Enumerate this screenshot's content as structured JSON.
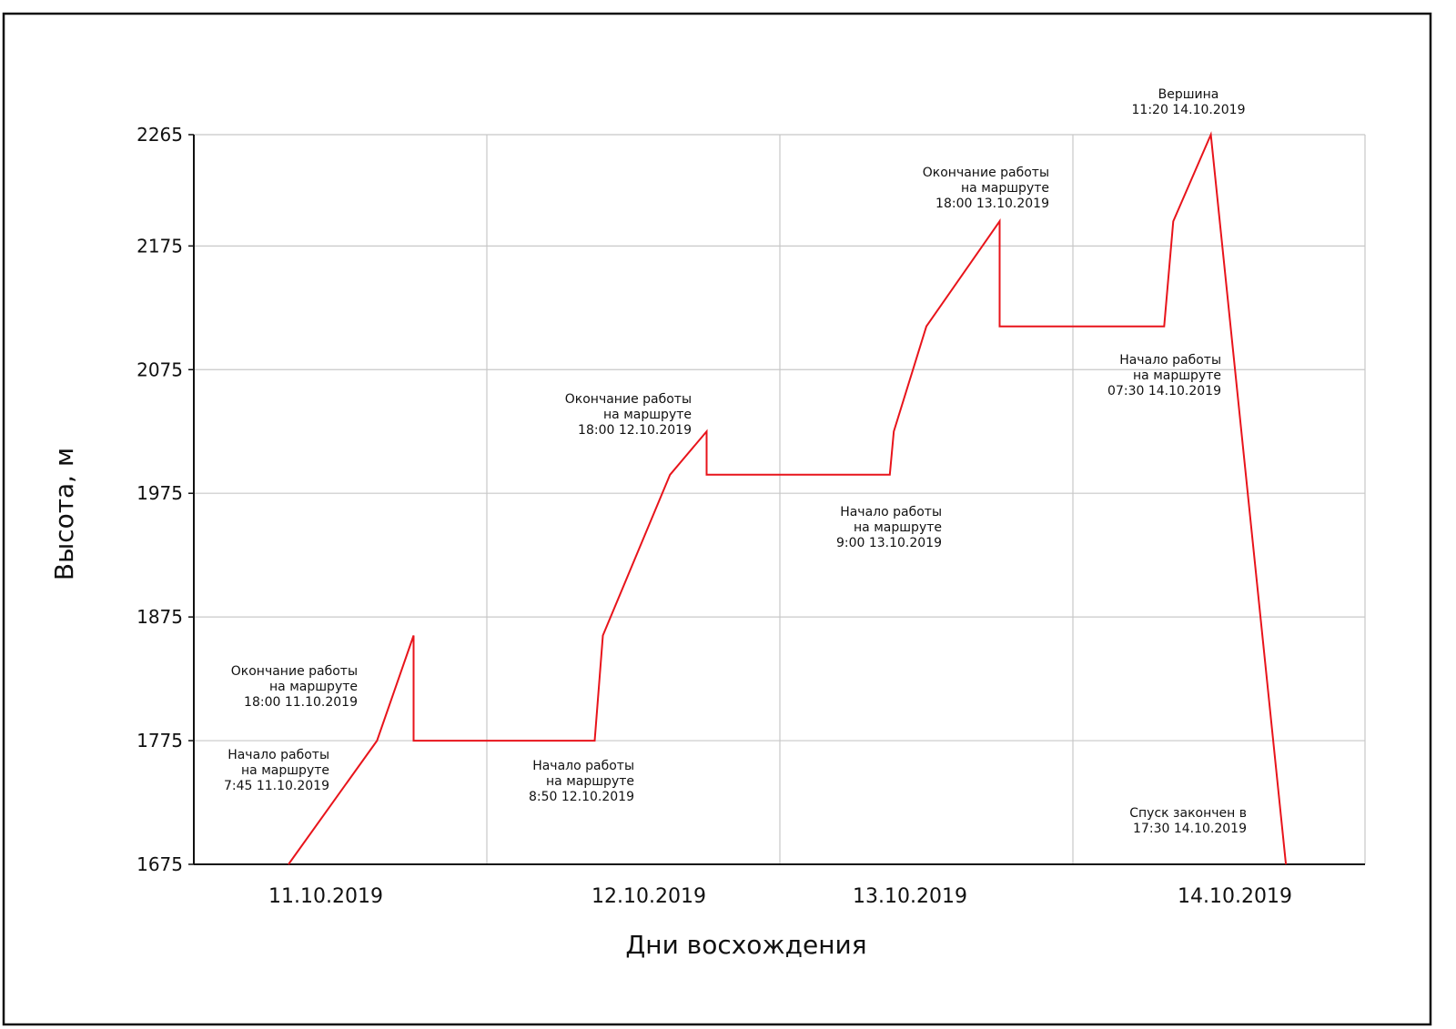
{
  "chart_data": {
    "type": "line",
    "xlabel": "Дни восхождения",
    "ylabel": "Высота, м",
    "ylim": [
      1675,
      2265
    ],
    "yticks": [
      1675,
      1775,
      1875,
      1975,
      2075,
      2175,
      2265
    ],
    "grid": true,
    "x_day_labels": [
      "11.10.2019",
      "12.10.2019",
      "13.10.2019",
      "14.10.2019"
    ],
    "series": [
      {
        "color": "#e8141b",
        "points": [
          {
            "x": "2019-10-11 07:45",
            "y": 1675
          },
          {
            "x": "2019-10-11 15:00",
            "y": 1775
          },
          {
            "x": "2019-10-11 18:00",
            "y": 1860
          },
          {
            "x": "2019-10-11 18:00",
            "y": 1775
          },
          {
            "x": "2019-10-12 08:50",
            "y": 1775
          },
          {
            "x": "2019-10-12 09:30",
            "y": 1860
          },
          {
            "x": "2019-10-12 15:00",
            "y": 1990
          },
          {
            "x": "2019-10-12 18:00",
            "y": 2025
          },
          {
            "x": "2019-10-12 18:00",
            "y": 1990
          },
          {
            "x": "2019-10-13 09:00",
            "y": 1990
          },
          {
            "x": "2019-10-13 09:20",
            "y": 2025
          },
          {
            "x": "2019-10-13 12:00",
            "y": 2110
          },
          {
            "x": "2019-10-13 18:00",
            "y": 2195
          },
          {
            "x": "2019-10-13 18:00",
            "y": 2110
          },
          {
            "x": "2019-10-14 07:30",
            "y": 2110
          },
          {
            "x": "2019-10-14 08:15",
            "y": 2195
          },
          {
            "x": "2019-10-14 11:20",
            "y": 2265
          },
          {
            "x": "2019-10-14 17:30",
            "y": 1675
          }
        ]
      }
    ],
    "annotations": [
      {
        "lines": [
          "Начало работы",
          "на маршруте",
          "7:45  11.10.2019"
        ]
      },
      {
        "lines": [
          "Окончание работы",
          "на маршруте",
          "18:00  11.10.2019"
        ]
      },
      {
        "lines": [
          "Начало работы",
          "на маршруте",
          "8:50  12.10.2019"
        ]
      },
      {
        "lines": [
          "Окончание работы",
          "на маршруте",
          "18:00  12.10.2019"
        ]
      },
      {
        "lines": [
          "Начало работы",
          "на маршруте",
          "9:00  13.10.2019"
        ]
      },
      {
        "lines": [
          "Окончание работы",
          "на маршруте",
          "18:00  13.10.2019"
        ]
      },
      {
        "lines": [
          "Начало работы",
          "на маршруте",
          "07:30  14.10.2019"
        ]
      },
      {
        "lines": [
          "Вершина",
          "11:20  14.10.2019"
        ]
      },
      {
        "lines": [
          "Спуск закончен в",
          "17:30  14.10.2019"
        ]
      }
    ]
  }
}
